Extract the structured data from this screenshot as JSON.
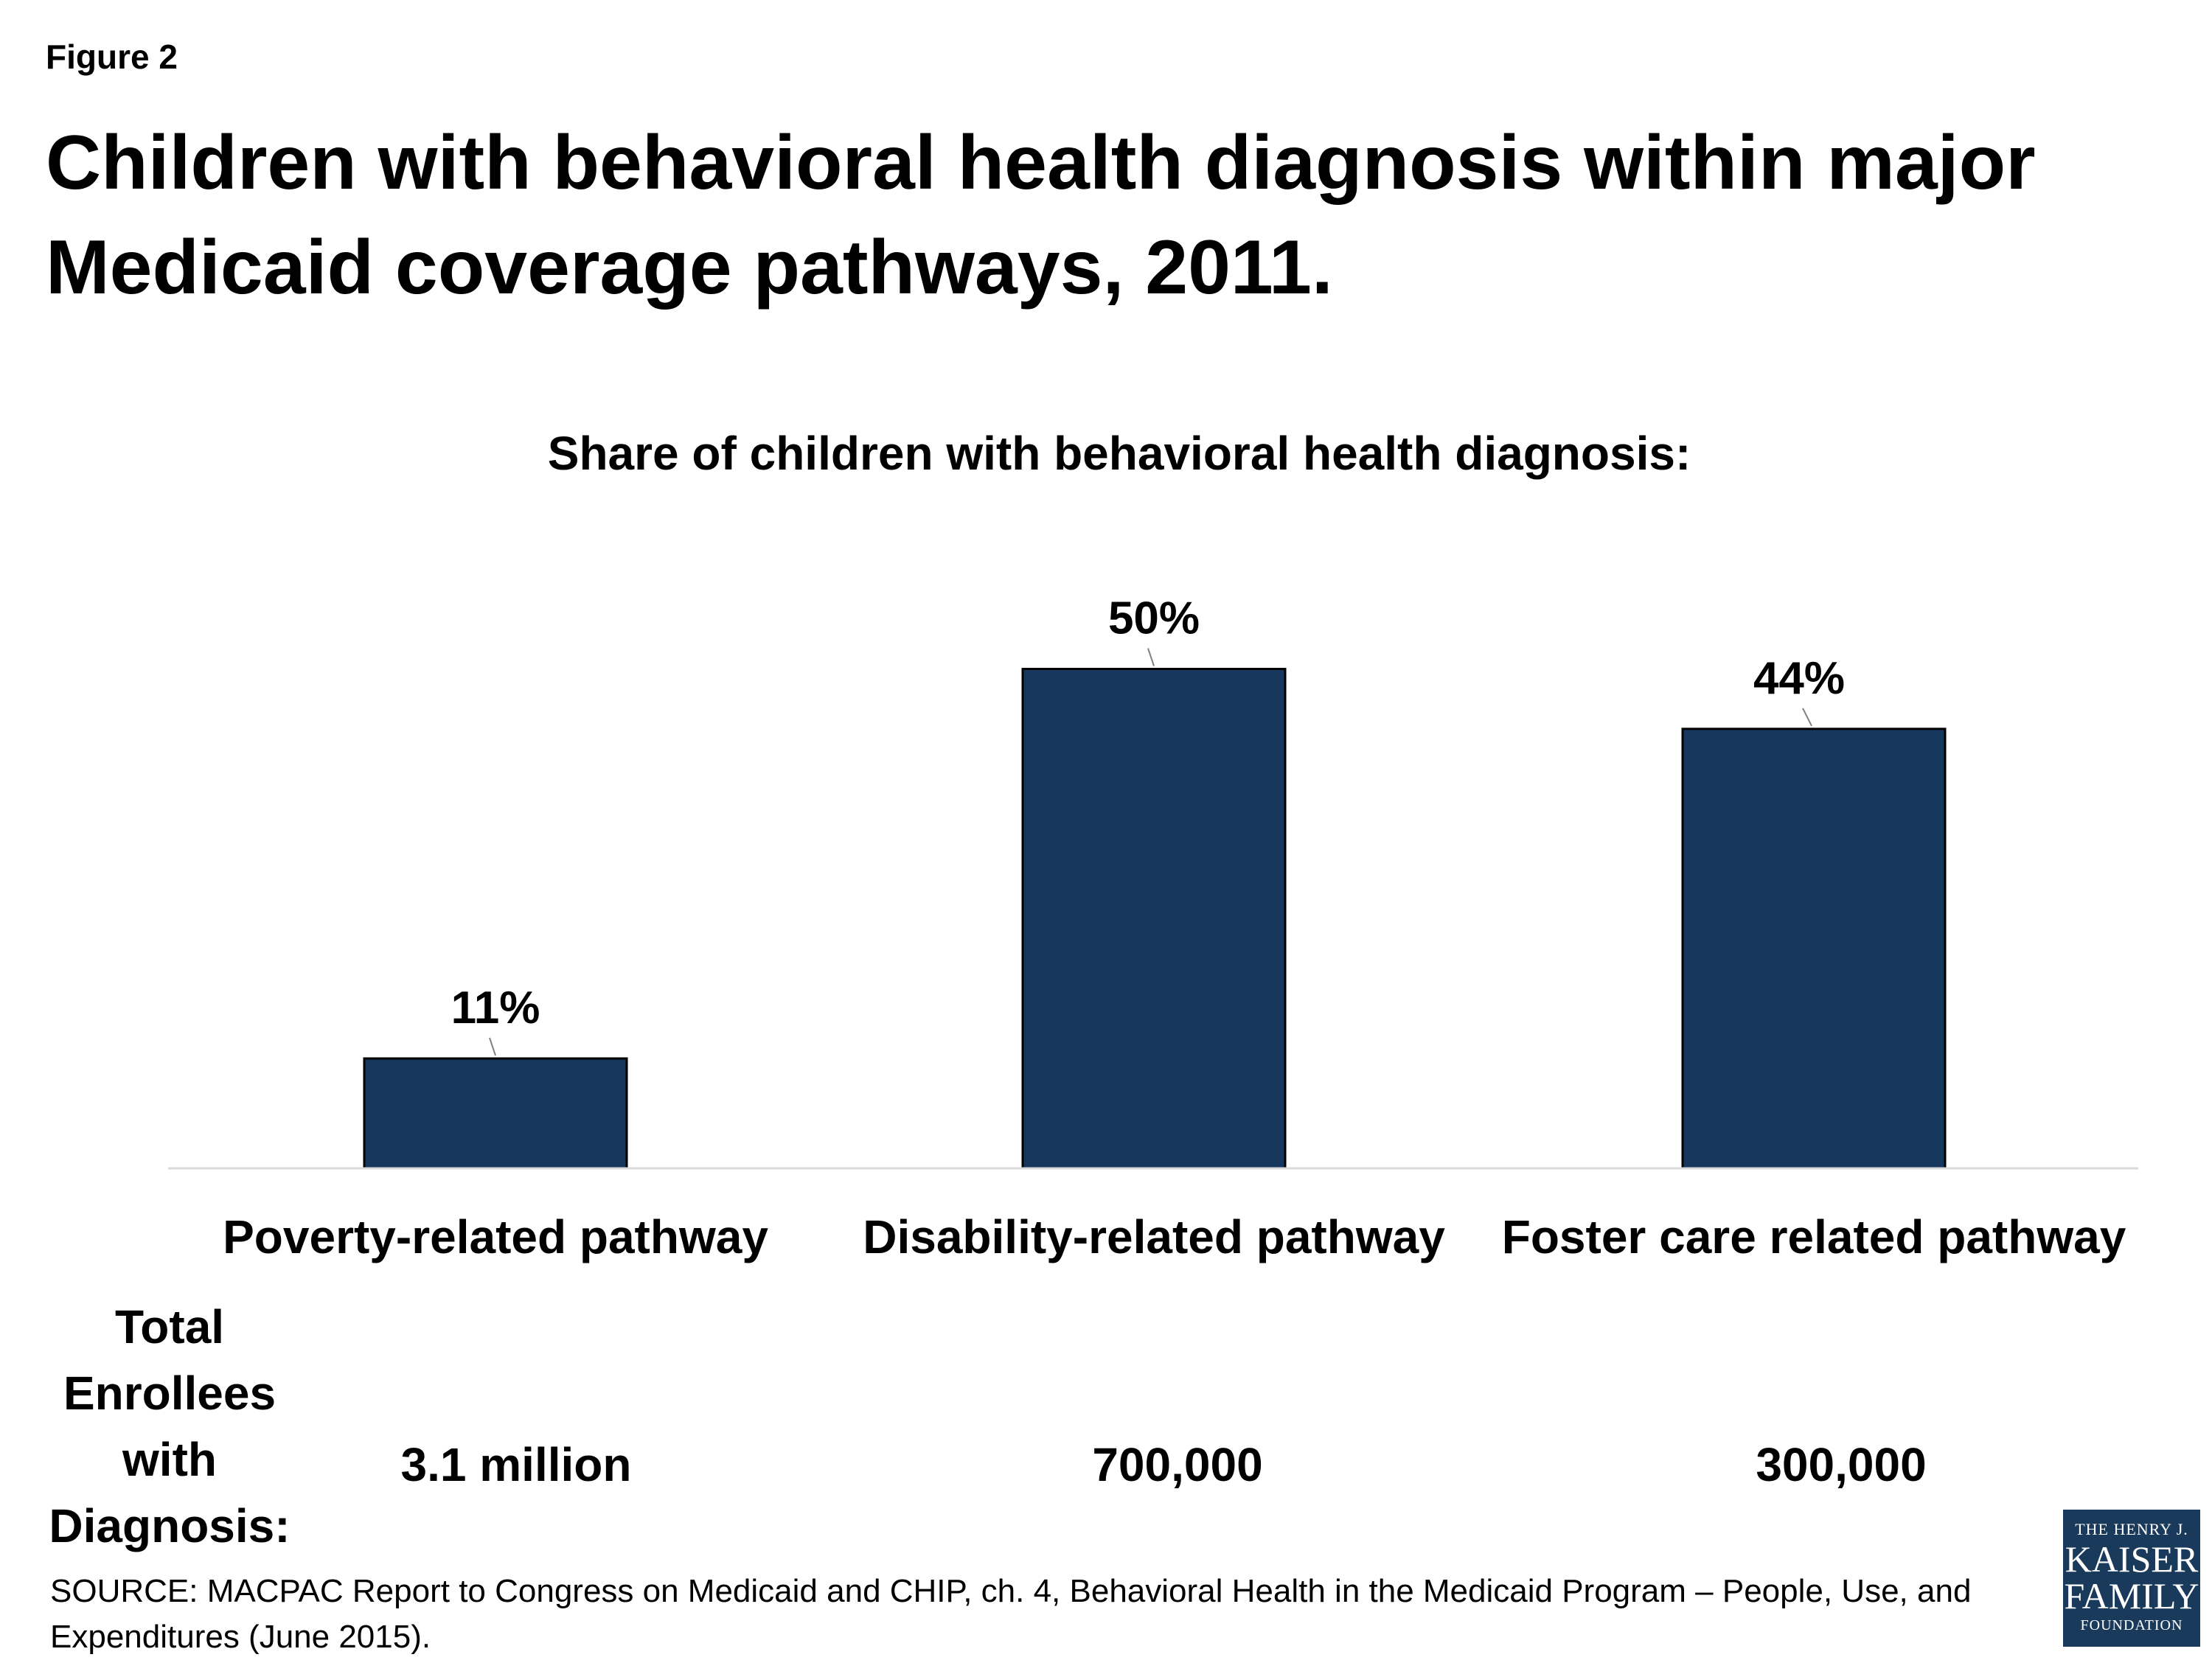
{
  "figure_label": "Figure 2",
  "title": "Children with behavioral health diagnosis within major Medicaid coverage pathways, 2011.",
  "chart_data": {
    "type": "bar",
    "title": "Share of children with behavioral health diagnosis:",
    "categories": [
      "Poverty-related pathway",
      "Disability-related pathway",
      "Foster care related pathway"
    ],
    "values": [
      11,
      50,
      44
    ],
    "value_labels": [
      "11%",
      "50%",
      "44%"
    ],
    "unit": "%",
    "ylim": [
      0,
      56
    ],
    "grid": false,
    "legend": "none",
    "bar_color": "#17375e",
    "bar_outline": "#000000",
    "axis_color": "#d9d9d9"
  },
  "enrollees": {
    "label": "Total Enrollees with Diagnosis:",
    "values": [
      "3.1 million",
      "700,000",
      "300,000"
    ]
  },
  "source": "SOURCE:  MACPAC Report to Congress on Medicaid and CHIP, ch. 4, Behavioral Health in the Medicaid Program – People, Use, and Expenditures (June 2015).",
  "logo": {
    "line1": "THE HENRY J.",
    "line2": "KAISER",
    "line3": "FAMILY",
    "line4": "FOUNDATION"
  }
}
